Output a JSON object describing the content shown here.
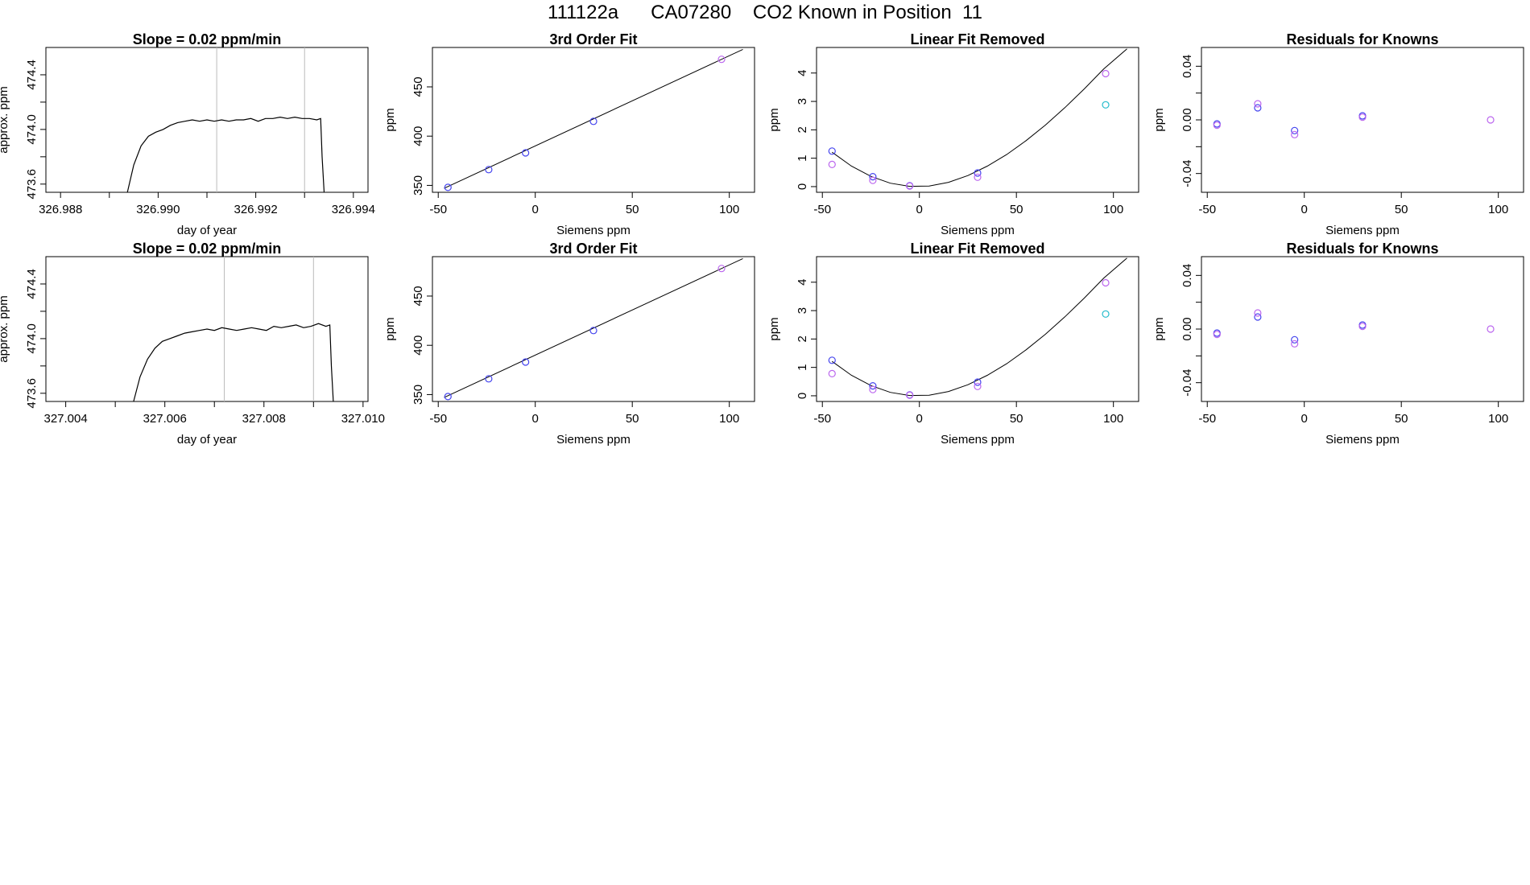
{
  "page": {
    "title": "111122a      CA07280    CO2 Known in Position  11"
  },
  "chart_data": [
    {
      "type": "line",
      "row": 0,
      "col": 0,
      "title": "Slope =  0.02  ppm/min",
      "xlabel": "day of year",
      "ylabel": "approx. ppm",
      "xlim": [
        326.9877,
        326.9943
      ],
      "ylim": [
        473.54,
        474.6
      ],
      "xticks": [
        326.988,
        326.989,
        326.99,
        326.991,
        326.992,
        326.993,
        326.994
      ],
      "xtick_labels": [
        "326.988",
        "",
        "326.990",
        "",
        "326.992",
        "",
        "326.994"
      ],
      "yticks": [
        473.6,
        473.8,
        474.0,
        474.2,
        474.4
      ],
      "ytick_labels": [
        "473.6",
        "",
        "474.0",
        "",
        "474.4"
      ],
      "vlines": [
        326.9912,
        326.993
      ],
      "series": [
        {
          "color": "#000000",
          "x": [
            326.98937,
            326.9895,
            326.98965,
            326.9898,
            326.98995,
            326.9901,
            326.99025,
            326.9904,
            326.99055,
            326.9907,
            326.99085,
            326.991,
            326.99115,
            326.9913,
            326.99145,
            326.9916,
            326.99175,
            326.9919,
            326.99205,
            326.9922,
            326.99235,
            326.9925,
            326.99265,
            326.9928,
            326.99295,
            326.9931,
            326.99325,
            326.99333,
            326.99336,
            326.9934
          ],
          "y": [
            473.54,
            473.74,
            473.88,
            473.95,
            473.98,
            474.0,
            474.03,
            474.05,
            474.06,
            474.07,
            474.06,
            474.07,
            474.06,
            474.07,
            474.06,
            474.07,
            474.07,
            474.08,
            474.06,
            474.08,
            474.08,
            474.09,
            474.08,
            474.09,
            474.08,
            474.08,
            474.07,
            474.08,
            473.8,
            473.54
          ]
        }
      ]
    },
    {
      "type": "scatter",
      "row": 0,
      "col": 1,
      "title": "3rd Order Fit",
      "xlabel": "Siemens ppm",
      "ylabel": "ppm",
      "xlim": [
        -53,
        113
      ],
      "ylim": [
        343,
        490
      ],
      "xticks": [
        -50,
        0,
        50,
        100
      ],
      "xtick_labels": [
        "-50",
        "0",
        "50",
        "100"
      ],
      "yticks": [
        350,
        400,
        450
      ],
      "ytick_labels": [
        "350",
        "400",
        "450"
      ],
      "curve": {
        "x": [
          -47,
          107
        ],
        "y": [
          347,
          488
        ]
      },
      "series": [
        {
          "color": "#4444ee",
          "x": [
            -45,
            -24,
            -5,
            30
          ],
          "y": [
            348,
            366,
            383,
            415
          ]
        },
        {
          "color": "#bb66ee",
          "x": [
            96
          ],
          "y": [
            478
          ]
        }
      ]
    },
    {
      "type": "scatter",
      "row": 0,
      "col": 2,
      "title": "Linear Fit Removed",
      "xlabel": "Siemens ppm",
      "ylabel": "ppm",
      "xlim": [
        -53,
        113
      ],
      "ylim": [
        -0.2,
        4.9
      ],
      "xticks": [
        -50,
        0,
        50,
        100
      ],
      "xtick_labels": [
        "-50",
        "0",
        "50",
        "100"
      ],
      "yticks": [
        0,
        1,
        2,
        3,
        4
      ],
      "ytick_labels": [
        "0",
        "1",
        "2",
        "3",
        "4"
      ],
      "curve": {
        "x": [
          -45,
          -35,
          -25,
          -15,
          -5,
          5,
          15,
          25,
          35,
          45,
          55,
          65,
          75,
          85,
          95,
          107
        ],
        "y": [
          1.21,
          0.72,
          0.36,
          0.12,
          0.01,
          0.02,
          0.15,
          0.39,
          0.72,
          1.13,
          1.62,
          2.17,
          2.78,
          3.44,
          4.14,
          4.85
        ]
      },
      "series": [
        {
          "color": "#4444ee",
          "x": [
            -45,
            -24,
            -5,
            30
          ],
          "y": [
            1.25,
            0.35,
            0.03,
            0.48
          ]
        },
        {
          "color": "#bb66ee",
          "x": [
            -45,
            -24,
            -5,
            30,
            96
          ],
          "y": [
            0.78,
            0.22,
            0.02,
            0.33,
            3.98
          ]
        },
        {
          "color": "#22bbcc",
          "x": [
            96
          ],
          "y": [
            2.88
          ]
        }
      ]
    },
    {
      "type": "scatter",
      "row": 0,
      "col": 3,
      "title": "Residuals for Knowns",
      "xlabel": "Siemens ppm",
      "ylabel": "ppm",
      "xlim": [
        -53,
        113
      ],
      "ylim": [
        -0.054,
        0.054
      ],
      "xticks": [
        -50,
        0,
        50,
        100
      ],
      "xtick_labels": [
        "-50",
        "0",
        "50",
        "100"
      ],
      "yticks": [
        -0.04,
        -0.02,
        0.0,
        0.02,
        0.04
      ],
      "ytick_labels": [
        "-0.04",
        "",
        "0.00",
        "",
        "0.04"
      ],
      "series": [
        {
          "color": "#4444ee",
          "x": [
            -45,
            -24,
            -5,
            30
          ],
          "y": [
            -0.003,
            0.009,
            -0.008,
            0.003
          ]
        },
        {
          "color": "#bb66ee",
          "x": [
            -45,
            -24,
            -5,
            30,
            96
          ],
          "y": [
            -0.004,
            0.012,
            -0.011,
            0.002,
            0.0
          ]
        }
      ]
    },
    {
      "type": "line",
      "row": 1,
      "col": 0,
      "title": "Slope =  0.02  ppm/min",
      "xlabel": "day of year",
      "ylabel": "approx. ppm",
      "xlim": [
        327.0036,
        327.0101
      ],
      "ylim": [
        473.54,
        474.6
      ],
      "xticks": [
        327.004,
        327.005,
        327.006,
        327.007,
        327.008,
        327.009,
        327.01
      ],
      "xtick_labels": [
        "327.004",
        "",
        "327.006",
        "",
        "327.008",
        "",
        "327.010"
      ],
      "yticks": [
        473.6,
        473.8,
        474.0,
        474.2,
        474.4
      ],
      "ytick_labels": [
        "473.6",
        "",
        "474.0",
        "",
        "474.4"
      ],
      "vlines": [
        327.0072,
        327.009
      ],
      "series": [
        {
          "color": "#000000",
          "x": [
            327.00537,
            327.0055,
            327.00565,
            327.0058,
            327.00595,
            327.0061,
            327.00625,
            327.0064,
            327.00655,
            327.0067,
            327.00685,
            327.007,
            327.00715,
            327.0073,
            327.00745,
            327.0076,
            327.00775,
            327.0079,
            327.00805,
            327.0082,
            327.00835,
            327.0085,
            327.00865,
            327.0088,
            327.00895,
            327.0091,
            327.00925,
            327.00933,
            327.00936,
            327.0094
          ],
          "y": [
            473.54,
            473.72,
            473.85,
            473.93,
            473.98,
            474.0,
            474.02,
            474.04,
            474.05,
            474.06,
            474.07,
            474.06,
            474.08,
            474.07,
            474.06,
            474.07,
            474.08,
            474.07,
            474.06,
            474.09,
            474.08,
            474.09,
            474.1,
            474.08,
            474.09,
            474.11,
            474.09,
            474.1,
            473.8,
            473.54
          ]
        }
      ]
    },
    {
      "type": "scatter",
      "row": 1,
      "col": 1,
      "title": "3rd Order Fit",
      "xlabel": "Siemens ppm",
      "ylabel": "ppm",
      "xlim": [
        -53,
        113
      ],
      "ylim": [
        343,
        490
      ],
      "xticks": [
        -50,
        0,
        50,
        100
      ],
      "xtick_labels": [
        "-50",
        "0",
        "50",
        "100"
      ],
      "yticks": [
        350,
        400,
        450
      ],
      "ytick_labels": [
        "350",
        "400",
        "450"
      ],
      "curve": {
        "x": [
          -47,
          107
        ],
        "y": [
          347,
          488
        ]
      },
      "series": [
        {
          "color": "#4444ee",
          "x": [
            -45,
            -24,
            -5,
            30
          ],
          "y": [
            348,
            366,
            383,
            415
          ]
        },
        {
          "color": "#bb66ee",
          "x": [
            96
          ],
          "y": [
            478
          ]
        }
      ]
    },
    {
      "type": "scatter",
      "row": 1,
      "col": 2,
      "title": "Linear Fit Removed",
      "xlabel": "Siemens ppm",
      "ylabel": "ppm",
      "xlim": [
        -53,
        113
      ],
      "ylim": [
        -0.2,
        4.9
      ],
      "xticks": [
        -50,
        0,
        50,
        100
      ],
      "xtick_labels": [
        "-50",
        "0",
        "50",
        "100"
      ],
      "yticks": [
        0,
        1,
        2,
        3,
        4
      ],
      "ytick_labels": [
        "0",
        "1",
        "2",
        "3",
        "4"
      ],
      "curve": {
        "x": [
          -45,
          -35,
          -25,
          -15,
          -5,
          5,
          15,
          25,
          35,
          45,
          55,
          65,
          75,
          85,
          95,
          107
        ],
        "y": [
          1.21,
          0.72,
          0.36,
          0.12,
          0.01,
          0.02,
          0.15,
          0.39,
          0.72,
          1.13,
          1.62,
          2.17,
          2.78,
          3.44,
          4.14,
          4.85
        ]
      },
      "series": [
        {
          "color": "#4444ee",
          "x": [
            -45,
            -24,
            -5,
            30
          ],
          "y": [
            1.25,
            0.35,
            0.03,
            0.48
          ]
        },
        {
          "color": "#bb66ee",
          "x": [
            -45,
            -24,
            -5,
            30,
            96
          ],
          "y": [
            0.78,
            0.22,
            0.02,
            0.33,
            3.98
          ]
        },
        {
          "color": "#22bbcc",
          "x": [
            96
          ],
          "y": [
            2.88
          ]
        }
      ]
    },
    {
      "type": "scatter",
      "row": 1,
      "col": 3,
      "title": "Residuals for Knowns",
      "xlabel": "Siemens ppm",
      "ylabel": "ppm",
      "xlim": [
        -53,
        113
      ],
      "ylim": [
        -0.054,
        0.054
      ],
      "xticks": [
        -50,
        0,
        50,
        100
      ],
      "xtick_labels": [
        "-50",
        "0",
        "50",
        "100"
      ],
      "yticks": [
        -0.04,
        -0.02,
        0.0,
        0.02,
        0.04
      ],
      "ytick_labels": [
        "-0.04",
        "",
        "0.00",
        "",
        "0.04"
      ],
      "series": [
        {
          "color": "#4444ee",
          "x": [
            -45,
            -24,
            -5,
            30
          ],
          "y": [
            -0.003,
            0.009,
            -0.008,
            0.003
          ]
        },
        {
          "color": "#bb66ee",
          "x": [
            -45,
            -24,
            -5,
            30,
            96
          ],
          "y": [
            -0.004,
            0.012,
            -0.011,
            0.002,
            0.0
          ]
        }
      ]
    }
  ]
}
